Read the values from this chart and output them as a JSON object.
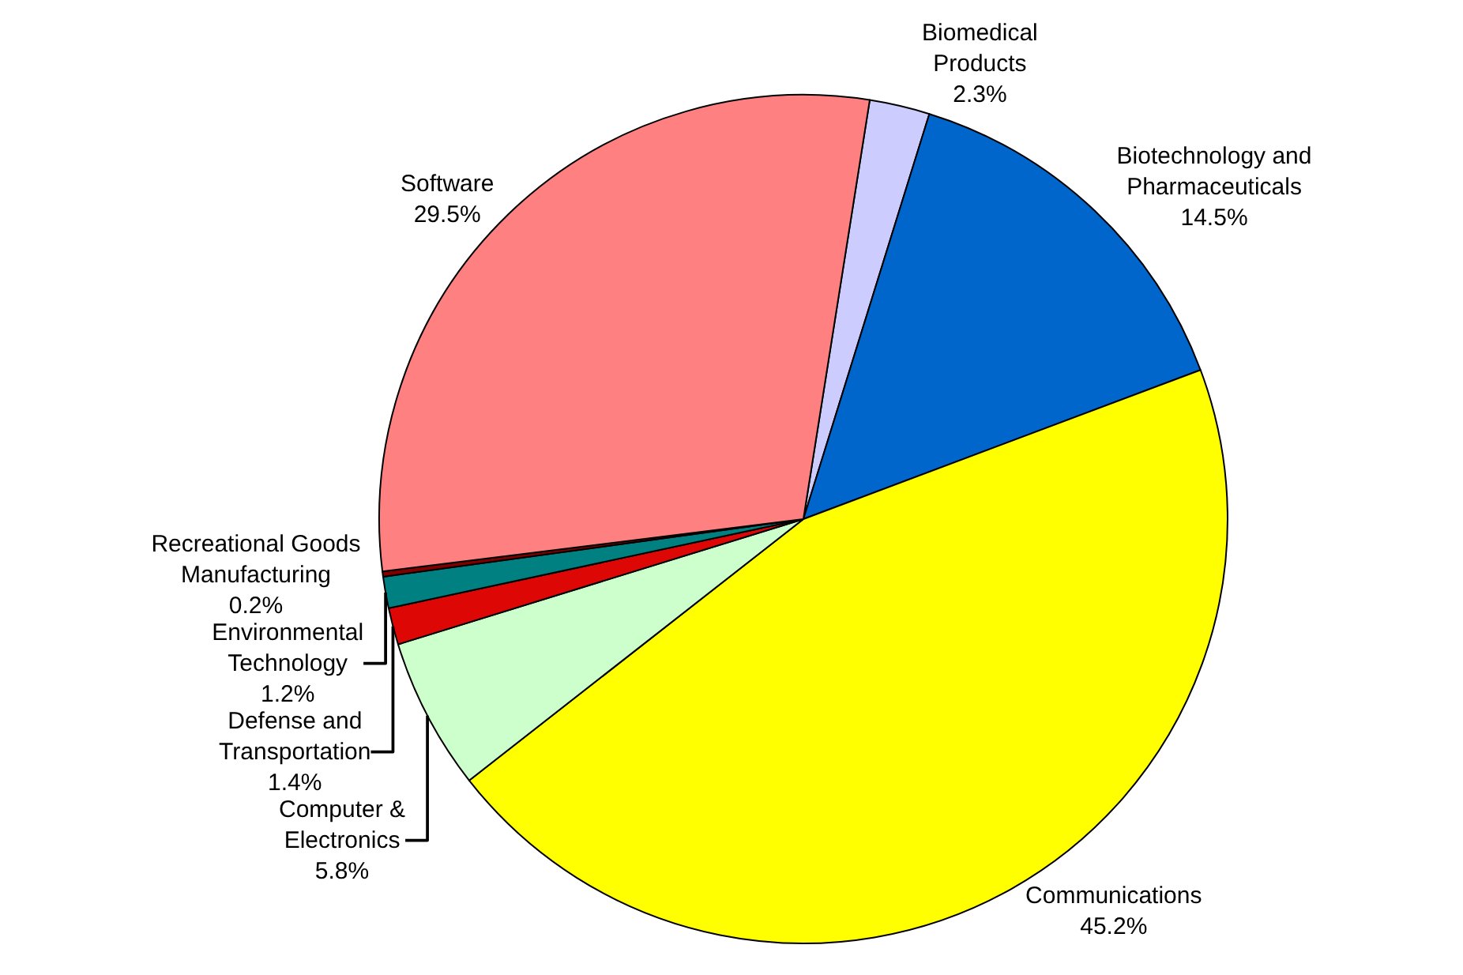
{
  "chart_data": {
    "type": "pie",
    "categories": [
      "Biomedical Products",
      "Biotechnology and Pharmaceuticals",
      "Communications",
      "Computer & Electronics",
      "Defense and Transportation",
      "Environmental Technology",
      "Recreational Goods Manufacturing",
      "Software"
    ],
    "values": [
      2.3,
      14.5,
      45.2,
      5.8,
      1.4,
      1.2,
      0.2,
      29.5
    ],
    "value_labels": [
      "2.3%",
      "14.5%",
      "45.2%",
      "5.8%",
      "1.4%",
      "1.2%",
      "0.2%",
      "29.5%"
    ],
    "colors": [
      "#ccccff",
      "#0066cc",
      "#ffff00",
      "#ccffcc",
      "#dd0806",
      "#008080",
      "#800000",
      "#ff8080"
    ],
    "legend": false
  }
}
